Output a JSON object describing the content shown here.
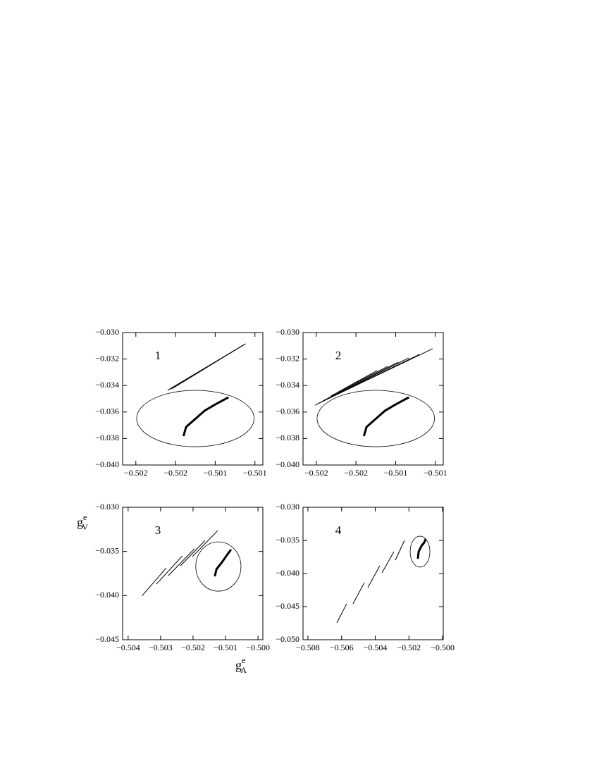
{
  "chart_data": [
    {
      "type": "line",
      "label": "1",
      "xlim": [
        -0.50215,
        -0.50109
      ],
      "ylim": [
        -0.04,
        -0.03
      ],
      "xticks": [
        {
          "value": -0.50205,
          "label": "−0.502"
        },
        {
          "value": -0.50175,
          "label": "−0.502"
        },
        {
          "value": -0.50145,
          "label": "−0.501"
        },
        {
          "value": -0.50115,
          "label": "−0.501"
        }
      ],
      "yticks": [
        {
          "value": -0.03,
          "label": "−0.030"
        },
        {
          "value": -0.032,
          "label": "−0.032"
        },
        {
          "value": -0.034,
          "label": "−0.034"
        },
        {
          "value": -0.036,
          "label": "−0.036"
        },
        {
          "value": -0.038,
          "label": "−0.038"
        },
        {
          "value": -0.04,
          "label": "−0.040"
        }
      ],
      "ellipse": {
        "cx": -0.5016,
        "cy": -0.03649,
        "rx": 0.000444,
        "ry": 0.00213,
        "color": "#000000"
      },
      "series": [
        {
          "color": "#000000",
          "width": 1,
          "x": [
            -0.5018,
            -0.50123
          ],
          "values": [
            -0.03431,
            -0.0309
          ]
        },
        {
          "color": "#000000",
          "width": 1,
          "x": [
            -0.50178,
            -0.50124
          ],
          "values": [
            -0.03426,
            -0.03096
          ]
        },
        {
          "color": "#000000",
          "width": 1,
          "x": [
            -0.50181,
            -0.50122
          ],
          "values": [
            -0.03436,
            -0.03085
          ]
        },
        {
          "color": "#000000",
          "width": 3,
          "x": [
            -0.50169,
            -0.50167,
            -0.50161,
            -0.50153,
            -0.50145,
            -0.50135
          ],
          "values": [
            -0.03782,
            -0.03713,
            -0.0366,
            -0.0359,
            -0.03543,
            -0.03489
          ]
        }
      ]
    },
    {
      "type": "line",
      "label": "2",
      "xlim": [
        -0.50215,
        -0.50109
      ],
      "ylim": [
        -0.04,
        -0.03
      ],
      "xticks": [
        {
          "value": -0.50205,
          "label": "−0.502"
        },
        {
          "value": -0.50175,
          "label": "−0.502"
        },
        {
          "value": -0.50145,
          "label": "−0.501"
        },
        {
          "value": -0.50115,
          "label": "−0.501"
        }
      ],
      "yticks": [
        {
          "value": -0.03,
          "label": "−0.030"
        },
        {
          "value": -0.032,
          "label": "−0.032"
        },
        {
          "value": -0.034,
          "label": "−0.034"
        },
        {
          "value": -0.036,
          "label": "−0.036"
        },
        {
          "value": -0.038,
          "label": "−0.038"
        },
        {
          "value": -0.04,
          "label": "−0.040"
        }
      ],
      "ellipse": {
        "cx": -0.5016,
        "cy": -0.03649,
        "rx": 0.000444,
        "ry": 0.00213,
        "color": "#000000"
      },
      "series": [
        {
          "color": "#000000",
          "width": 1,
          "x": [
            -0.50206,
            -0.50117
          ],
          "values": [
            -0.03548,
            -0.03122
          ]
        },
        {
          "color": "#000000",
          "width": 1,
          "x": [
            -0.50203,
            -0.50127
          ],
          "values": [
            -0.03532,
            -0.03165
          ]
        },
        {
          "color": "#000000",
          "width": 1,
          "x": [
            -0.502,
            -0.50135
          ],
          "values": [
            -0.03516,
            -0.03191
          ]
        },
        {
          "color": "#000000",
          "width": 1,
          "x": [
            -0.50196,
            -0.50143
          ],
          "values": [
            -0.03495,
            -0.03223
          ]
        },
        {
          "color": "#000000",
          "width": 1,
          "x": [
            -0.50194,
            -0.50151
          ],
          "values": [
            -0.03479,
            -0.03255
          ]
        },
        {
          "color": "#000000",
          "width": 1,
          "x": [
            -0.50189,
            -0.50159
          ],
          "values": [
            -0.03452,
            -0.03287
          ]
        },
        {
          "color": "#000000",
          "width": 3,
          "x": [
            -0.50169,
            -0.50167,
            -0.50161,
            -0.50153,
            -0.50145,
            -0.50135
          ],
          "values": [
            -0.03782,
            -0.03713,
            -0.0366,
            -0.0359,
            -0.03543,
            -0.03489
          ]
        }
      ]
    },
    {
      "type": "line",
      "label": "3",
      "xlim": [
        -0.50417,
        -0.49985
      ],
      "ylim": [
        -0.045,
        -0.03
      ],
      "xticks": [
        {
          "value": -0.504,
          "label": "−0.504"
        },
        {
          "value": -0.503,
          "label": "−0.503"
        },
        {
          "value": -0.502,
          "label": "−0.502"
        },
        {
          "value": -0.501,
          "label": "−0.501"
        },
        {
          "value": -0.5,
          "label": "−0.500"
        }
      ],
      "yticks": [
        {
          "value": -0.03,
          "label": "−0.030"
        },
        {
          "value": -0.035,
          "label": "−0.035"
        },
        {
          "value": -0.04,
          "label": "−0.040"
        },
        {
          "value": -0.045,
          "label": "−0.045"
        }
      ],
      "ellipse": {
        "cx": -0.50122,
        "cy": -0.03671,
        "rx": 0.000696,
        "ry": 0.00279,
        "color": "#000000"
      },
      "xlabel": {
        "base": "g",
        "sup": "e",
        "sub": "A"
      },
      "ylabel": {
        "base": "g",
        "sup": "e",
        "sub": "V"
      },
      "series": [
        {
          "color": "#000000",
          "width": 1,
          "x": [
            -0.50357,
            -0.50283
          ],
          "values": [
            -0.04002,
            -0.03689
          ]
        },
        {
          "color": "#000000",
          "width": 1,
          "x": [
            -0.50313,
            -0.50233
          ],
          "values": [
            -0.0387,
            -0.03551
          ]
        },
        {
          "color": "#000000",
          "width": 1,
          "x": [
            -0.50276,
            -0.50196
          ],
          "values": [
            -0.03774,
            -0.03471
          ]
        },
        {
          "color": "#000000",
          "width": 1,
          "x": [
            -0.50239,
            -0.50163
          ],
          "values": [
            -0.03663,
            -0.03376
          ]
        },
        {
          "color": "#000000",
          "width": 1,
          "x": [
            -0.50202,
            -0.50124
          ],
          "values": [
            -0.03559,
            -0.03264
          ]
        },
        {
          "color": "#000000",
          "width": 3,
          "x": [
            -0.50133,
            -0.50128,
            -0.50111,
            -0.50096,
            -0.50083
          ],
          "values": [
            -0.03782,
            -0.03703,
            -0.03623,
            -0.03543,
            -0.03479
          ]
        }
      ]
    },
    {
      "type": "line",
      "label": "4",
      "xlim": [
        -0.50829,
        -0.49996
      ],
      "ylim": [
        -0.05,
        -0.03
      ],
      "xticks": [
        {
          "value": -0.508,
          "label": "−0.508"
        },
        {
          "value": -0.506,
          "label": "−0.506"
        },
        {
          "value": -0.504,
          "label": "−0.504"
        },
        {
          "value": -0.502,
          "label": "−0.502"
        },
        {
          "value": -0.5,
          "label": "−0.500"
        }
      ],
      "yticks": [
        {
          "value": -0.03,
          "label": "−0.030"
        },
        {
          "value": -0.035,
          "label": "−0.035"
        },
        {
          "value": -0.04,
          "label": "−0.040"
        },
        {
          "value": -0.045,
          "label": "−0.045"
        },
        {
          "value": -0.05,
          "label": "−0.050"
        }
      ],
      "ellipse": {
        "cx": -0.50134,
        "cy": -0.0367,
        "rx": 0.000586,
        "ry": 0.00234,
        "color": "#000000"
      },
      "series": [
        {
          "color": "#000000",
          "width": 1,
          "x": [
            -0.50628,
            -0.5057
          ],
          "values": [
            -0.04745,
            -0.04457
          ]
        },
        {
          "color": "#000000",
          "width": 1,
          "x": [
            -0.50532,
            -0.50465
          ],
          "values": [
            -0.04457,
            -0.04138
          ]
        },
        {
          "color": "#000000",
          "width": 1,
          "x": [
            -0.50444,
            -0.50373
          ],
          "values": [
            -0.04213,
            -0.03883
          ]
        },
        {
          "color": "#000000",
          "width": 1,
          "x": [
            -0.5036,
            -0.50289
          ],
          "values": [
            -0.03989,
            -0.0367
          ]
        },
        {
          "color": "#000000",
          "width": 1,
          "x": [
            -0.50281,
            -0.50226
          ],
          "values": [
            -0.03798,
            -0.035
          ]
        },
        {
          "color": "#000000",
          "width": 3,
          "x": [
            -0.50147,
            -0.50142,
            -0.50126,
            -0.50109,
            -0.50101
          ],
          "values": [
            -0.03777,
            -0.0367,
            -0.03585,
            -0.03532,
            -0.03479
          ]
        }
      ]
    }
  ]
}
